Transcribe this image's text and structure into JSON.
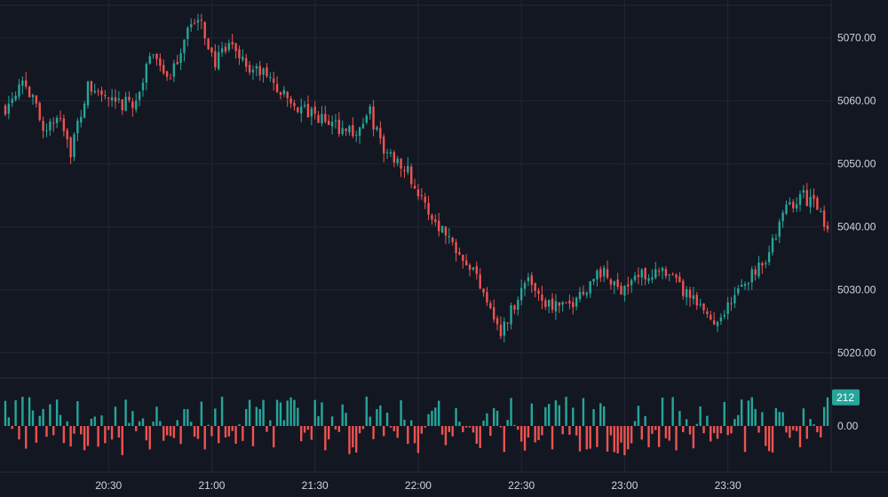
{
  "colors": {
    "background": "#131722",
    "grid": "#232734",
    "separator": "#2a2e39",
    "up": "#26a69a",
    "down": "#ef5350",
    "axis_text": "#d1d4dc"
  },
  "chart_data": [
    {
      "type": "candlestick",
      "symbol_timeframe": "1-minute-like intraday",
      "ylim": [
        5016,
        5076
      ],
      "price_ticks": [
        "5070.00",
        "5060.00",
        "5050.00",
        "5040.00",
        "5030.00",
        "5020.00"
      ],
      "price_tick_values": [
        5070,
        5060,
        5050,
        5040,
        5030,
        5020
      ],
      "x_ticks": [
        "20:30",
        "21:00",
        "21:30",
        "22:00",
        "22:30",
        "23:00",
        "23:30"
      ],
      "x_tick_minutes": [
        30,
        60,
        90,
        120,
        150,
        180,
        210
      ],
      "x_range_minutes": [
        0,
        239
      ],
      "grid": true,
      "close_path": [
        [
          0,
          5059
        ],
        [
          5,
          5064
        ],
        [
          8,
          5060
        ],
        [
          12,
          5055
        ],
        [
          16,
          5058
        ],
        [
          19,
          5052
        ],
        [
          24,
          5062
        ],
        [
          28,
          5061
        ],
        [
          32,
          5059
        ],
        [
          38,
          5060
        ],
        [
          43,
          5068
        ],
        [
          48,
          5063
        ],
        [
          53,
          5072
        ],
        [
          57,
          5072
        ],
        [
          61,
          5066
        ],
        [
          66,
          5069
        ],
        [
          71,
          5065
        ],
        [
          76,
          5064
        ],
        [
          82,
          5060
        ],
        [
          88,
          5058
        ],
        [
          96,
          5056
        ],
        [
          102,
          5055
        ],
        [
          106,
          5058
        ],
        [
          110,
          5052
        ],
        [
          116,
          5050
        ],
        [
          122,
          5043
        ],
        [
          128,
          5039
        ],
        [
          134,
          5035
        ],
        [
          140,
          5029
        ],
        [
          144,
          5023
        ],
        [
          148,
          5028
        ],
        [
          152,
          5032
        ],
        [
          157,
          5028
        ],
        [
          163,
          5027
        ],
        [
          168,
          5030
        ],
        [
          173,
          5033
        ],
        [
          178,
          5030
        ],
        [
          183,
          5032
        ],
        [
          189,
          5033
        ],
        [
          195,
          5031
        ],
        [
          200,
          5028
        ],
        [
          206,
          5025
        ],
        [
          211,
          5028
        ],
        [
          216,
          5032
        ],
        [
          222,
          5036
        ],
        [
          227,
          5043
        ],
        [
          231,
          5045
        ],
        [
          235,
          5044
        ],
        [
          239,
          5039
        ]
      ]
    },
    {
      "type": "histogram",
      "pane": "oscillator",
      "zero_label": "0.00",
      "last_value": 212,
      "last_value_label": "212",
      "amplitude": 250
    }
  ]
}
